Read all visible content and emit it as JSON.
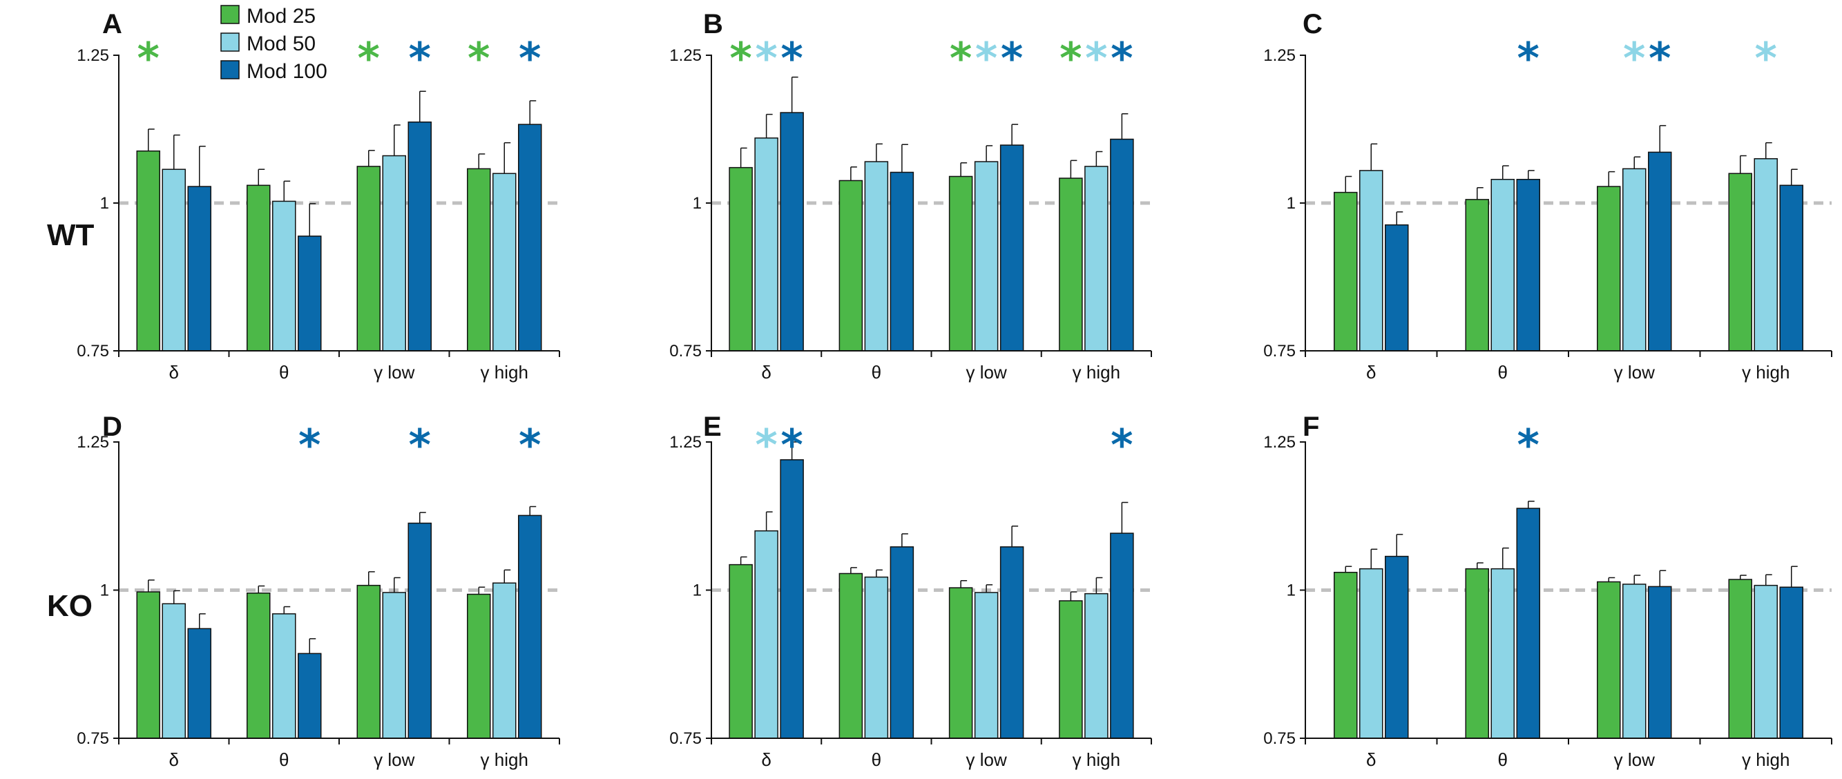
{
  "row_labels": [
    "WT",
    "KO"
  ],
  "colors": {
    "mod25": "#4cb848",
    "mod50": "#8dd5e6",
    "mod100": "#0a6aab",
    "reference_line": "#c0c0c0",
    "axis": "#111111"
  },
  "significance_symbol": "*",
  "chart_data": [
    {
      "panel": "A",
      "type": "bar",
      "group": "WT",
      "categories": [
        "δ",
        "θ",
        "γ low",
        "γ high"
      ],
      "series": [
        {
          "name": "Mod 25",
          "values": [
            1.088,
            1.03,
            1.062,
            1.058
          ],
          "errors": [
            0.037,
            0.027,
            0.027,
            0.025
          ],
          "significant": [
            true,
            false,
            true,
            true
          ]
        },
        {
          "name": "Mod 50",
          "values": [
            1.057,
            1.003,
            1.08,
            1.05
          ],
          "errors": [
            0.058,
            0.034,
            0.052,
            0.052
          ],
          "significant": [
            false,
            false,
            false,
            false
          ]
        },
        {
          "name": "Mod 100",
          "values": [
            1.028,
            0.944,
            1.137,
            1.133
          ],
          "errors": [
            0.068,
            0.055,
            0.052,
            0.04
          ],
          "significant": [
            false,
            false,
            true,
            true
          ]
        }
      ],
      "ylim": [
        0.75,
        1.25
      ],
      "yticks": [
        "0.75",
        "1",
        "1.25"
      ],
      "reference_line": 1
    },
    {
      "panel": "B",
      "type": "bar",
      "group": "WT",
      "categories": [
        "δ",
        "θ",
        "γ low",
        "γ high"
      ],
      "series": [
        {
          "name": "Mod 25",
          "values": [
            1.06,
            1.038,
            1.045,
            1.042
          ],
          "errors": [
            0.033,
            0.023,
            0.023,
            0.03
          ],
          "significant": [
            true,
            false,
            true,
            true
          ]
        },
        {
          "name": "Mod 50",
          "values": [
            1.11,
            1.07,
            1.07,
            1.062
          ],
          "errors": [
            0.04,
            0.03,
            0.027,
            0.025
          ],
          "significant": [
            true,
            false,
            true,
            true
          ]
        },
        {
          "name": "Mod 100",
          "values": [
            1.153,
            1.052,
            1.098,
            1.108
          ],
          "errors": [
            0.06,
            0.047,
            0.035,
            0.043
          ],
          "significant": [
            true,
            false,
            true,
            true
          ]
        }
      ],
      "ylim": [
        0.75,
        1.25
      ],
      "yticks": [
        "0.75",
        "1",
        "1.25"
      ],
      "reference_line": 1
    },
    {
      "panel": "C",
      "type": "bar",
      "group": "WT",
      "categories": [
        "δ",
        "θ",
        "γ low",
        "γ high"
      ],
      "series": [
        {
          "name": "Mod 25",
          "values": [
            1.018,
            1.006,
            1.028,
            1.05
          ],
          "errors": [
            0.027,
            0.02,
            0.025,
            0.03
          ],
          "significant": [
            false,
            false,
            false,
            false
          ]
        },
        {
          "name": "Mod 50",
          "values": [
            1.055,
            1.04,
            1.058,
            1.075
          ],
          "errors": [
            0.045,
            0.023,
            0.02,
            0.027
          ],
          "significant": [
            false,
            false,
            true,
            true
          ]
        },
        {
          "name": "Mod 100",
          "values": [
            0.963,
            1.04,
            1.086,
            1.03
          ],
          "errors": [
            0.022,
            0.015,
            0.045,
            0.027
          ],
          "significant": [
            false,
            true,
            true,
            false
          ]
        }
      ],
      "ylim": [
        0.75,
        1.25
      ],
      "yticks": [
        "0.75",
        "1",
        "1.25"
      ],
      "reference_line": 1
    },
    {
      "panel": "D",
      "type": "bar",
      "group": "KO",
      "categories": [
        "δ",
        "θ",
        "γ low",
        "γ high"
      ],
      "series": [
        {
          "name": "Mod 25",
          "values": [
            0.997,
            0.995,
            1.008,
            0.993
          ],
          "errors": [
            0.02,
            0.012,
            0.023,
            0.012
          ],
          "significant": [
            false,
            false,
            false,
            false
          ]
        },
        {
          "name": "Mod 50",
          "values": [
            0.977,
            0.96,
            0.996,
            1.012
          ],
          "errors": [
            0.022,
            0.012,
            0.025,
            0.022
          ],
          "significant": [
            false,
            false,
            false,
            false
          ]
        },
        {
          "name": "Mod 100",
          "values": [
            0.935,
            0.893,
            1.113,
            1.126
          ],
          "errors": [
            0.025,
            0.025,
            0.018,
            0.015
          ],
          "significant": [
            false,
            true,
            true,
            true
          ]
        }
      ],
      "ylim": [
        0.75,
        1.25
      ],
      "yticks": [
        "0.75",
        "1",
        "1.25"
      ],
      "reference_line": 1
    },
    {
      "panel": "E",
      "type": "bar",
      "group": "KO",
      "categories": [
        "δ",
        "θ",
        "γ low",
        "γ high"
      ],
      "series": [
        {
          "name": "Mod 25",
          "values": [
            1.043,
            1.028,
            1.004,
            0.982
          ],
          "errors": [
            0.013,
            0.01,
            0.012,
            0.015
          ],
          "significant": [
            false,
            false,
            false,
            false
          ]
        },
        {
          "name": "Mod 50",
          "values": [
            1.1,
            1.022,
            0.996,
            0.994
          ],
          "errors": [
            0.032,
            0.012,
            0.013,
            0.027
          ],
          "significant": [
            true,
            false,
            false,
            false
          ]
        },
        {
          "name": "Mod 100",
          "values": [
            1.22,
            1.073,
            1.073,
            1.096
          ],
          "errors": [
            0.03,
            0.022,
            0.035,
            0.052
          ],
          "significant": [
            true,
            false,
            false,
            true
          ]
        }
      ],
      "ylim": [
        0.75,
        1.25
      ],
      "yticks": [
        "0.75",
        "1",
        "1.25"
      ],
      "reference_line": 1
    },
    {
      "panel": "F",
      "type": "bar",
      "group": "KO",
      "categories": [
        "δ",
        "θ",
        "γ low",
        "γ high"
      ],
      "series": [
        {
          "name": "Mod 25",
          "values": [
            1.03,
            1.036,
            1.014,
            1.018
          ],
          "errors": [
            0.01,
            0.01,
            0.007,
            0.007
          ],
          "significant": [
            false,
            false,
            false,
            false
          ]
        },
        {
          "name": "Mod 50",
          "values": [
            1.036,
            1.036,
            1.01,
            1.008
          ],
          "errors": [
            0.033,
            0.035,
            0.015,
            0.018
          ],
          "significant": [
            false,
            false,
            false,
            false
          ]
        },
        {
          "name": "Mod 100",
          "values": [
            1.057,
            1.138,
            1.006,
            1.005
          ],
          "errors": [
            0.037,
            0.012,
            0.027,
            0.035
          ],
          "significant": [
            false,
            true,
            false,
            false
          ]
        }
      ],
      "ylim": [
        0.75,
        1.25
      ],
      "yticks": [
        "0.75",
        "1",
        "1.25"
      ],
      "reference_line": 1
    }
  ]
}
